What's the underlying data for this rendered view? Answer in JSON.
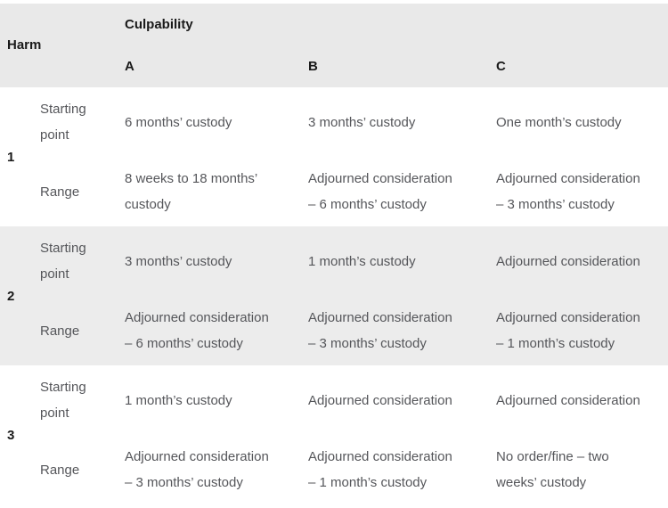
{
  "table": {
    "harm_header": "Harm",
    "culpability_header": "Culpability",
    "columns": [
      "A",
      "B",
      "C"
    ],
    "row_labels": {
      "starting": "Starting point",
      "range": "Range"
    },
    "rows": [
      {
        "harm": "1",
        "starting": [
          "6 months’ custody",
          "3 months’ custody",
          "One month’s custody"
        ],
        "range": [
          "8 weeks to 18 months’\ncustody",
          "Adjourned consideration\n– 6 months’ custody",
          "Adjourned consideration\n– 3 months’ custody"
        ]
      },
      {
        "harm": "2",
        "starting": [
          "3 months’ custody",
          "1 month’s custody",
          "Adjourned consideration"
        ],
        "range": [
          "Adjourned consideration\n– 6 months’ custody",
          "Adjourned consideration\n– 3 months’ custody",
          "Adjourned consideration\n– 1 month’s custody"
        ]
      },
      {
        "harm": "3",
        "starting": [
          "1 month’s custody",
          "Adjourned consideration",
          "Adjourned consideration"
        ],
        "range": [
          "Adjourned consideration\n– 3 months’ custody",
          "Adjourned consideration\n– 1 month’s custody",
          "No order/fine – two\nweeks’ custody"
        ]
      }
    ],
    "colors": {
      "header_bg": "#e9e9e9",
      "stripe_bg": "#ececec",
      "plain_bg": "#ffffff",
      "header_text": "#1a1a1a",
      "cell_text": "#55565a"
    }
  }
}
